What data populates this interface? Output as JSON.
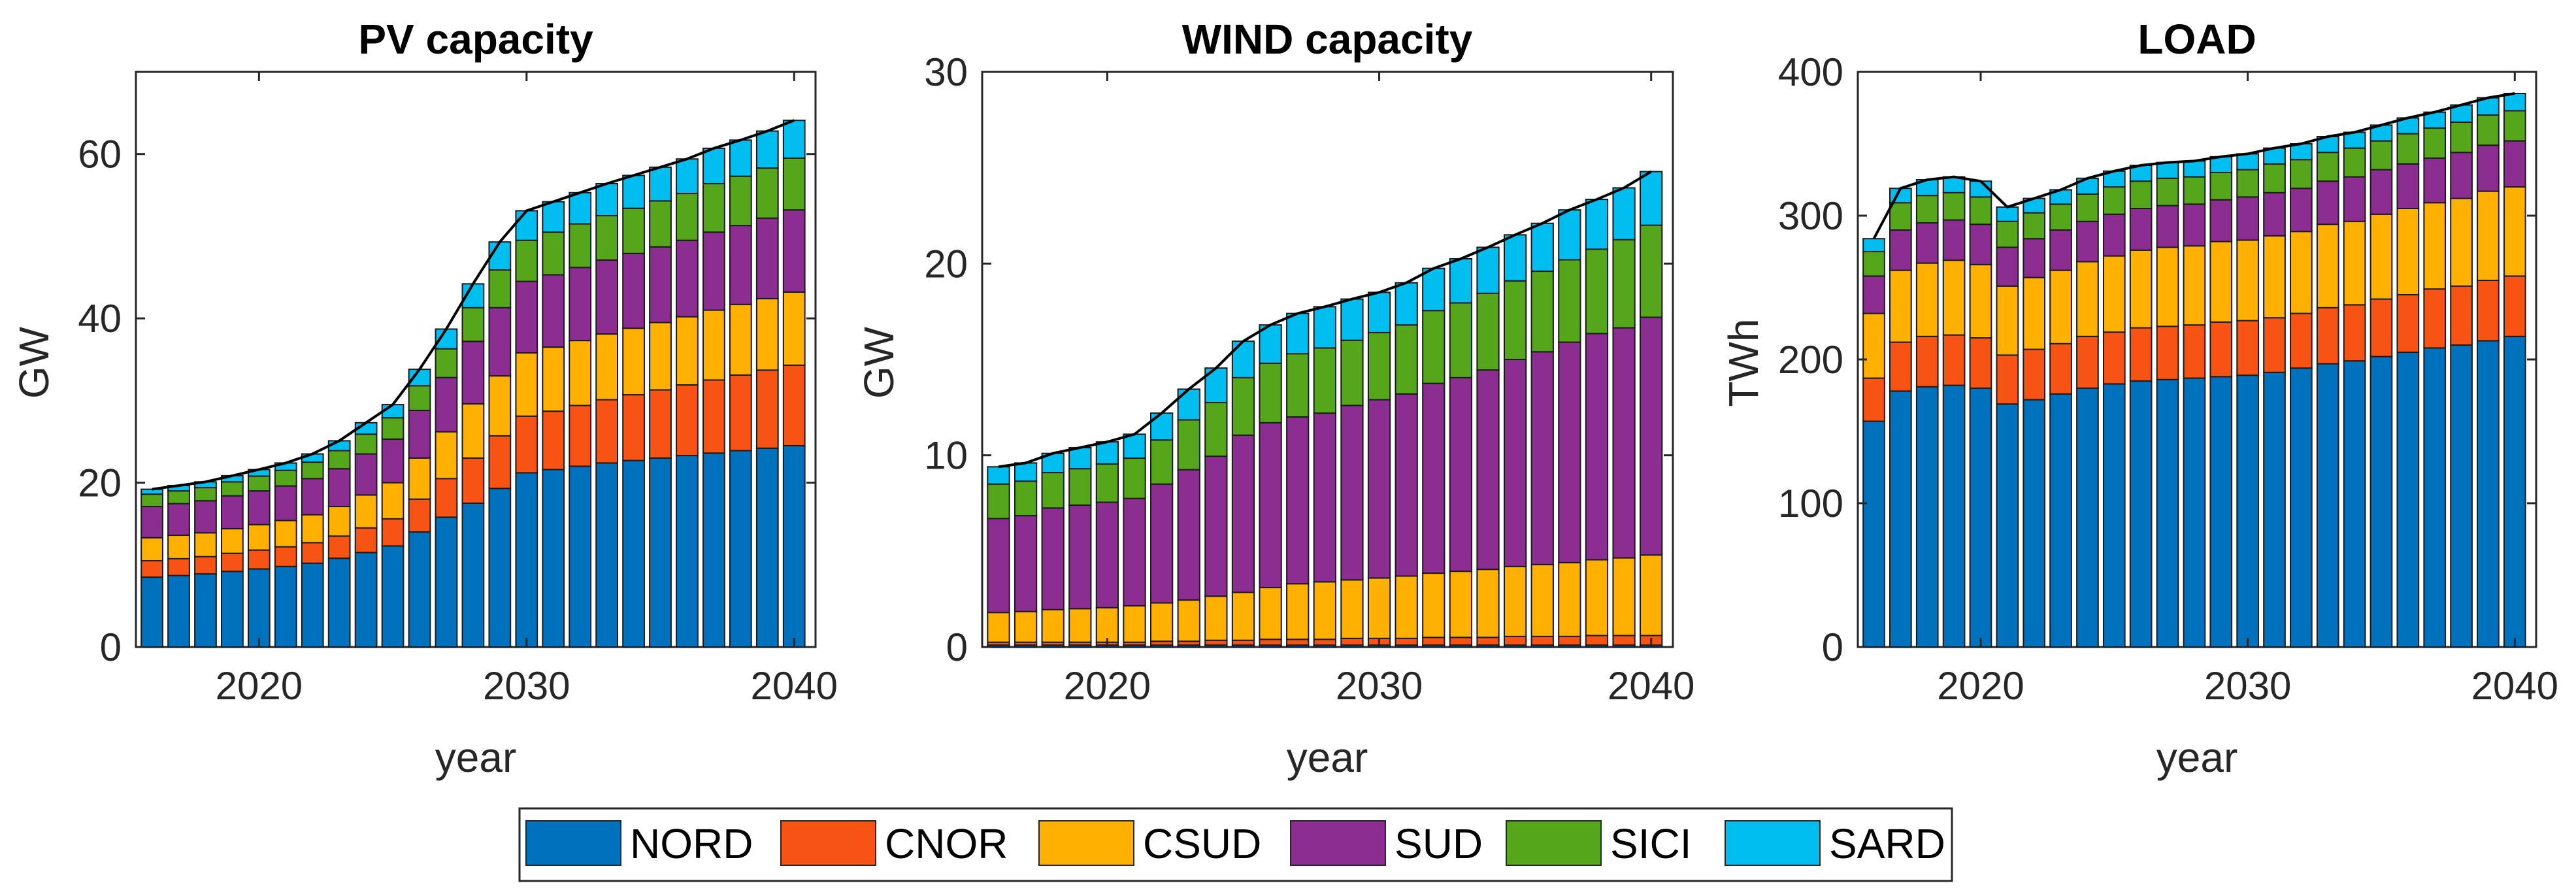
{
  "chart_data": [
    {
      "type": "bar",
      "stacked": true,
      "title": "PV capacity",
      "xlabel": "year",
      "ylabel": "GW",
      "xlim": [
        2015.4,
        2040.8
      ],
      "ylim": [
        0,
        70
      ],
      "xticks": [
        2020,
        2030,
        2040
      ],
      "yticks": [
        0,
        20,
        40,
        60
      ],
      "categories": [
        2016,
        2017,
        2018,
        2019,
        2020,
        2021,
        2022,
        2023,
        2024,
        2025,
        2026,
        2027,
        2028,
        2029,
        2030,
        2031,
        2032,
        2033,
        2034,
        2035,
        2036,
        2037,
        2038,
        2039,
        2040
      ],
      "series": [
        {
          "name": "NORD",
          "values": [
            8.5,
            8.7,
            8.9,
            9.2,
            9.5,
            9.8,
            10.2,
            10.8,
            11.5,
            12.3,
            14.0,
            15.8,
            17.5,
            19.3,
            21.2,
            21.6,
            22.0,
            22.4,
            22.7,
            23.0,
            23.3,
            23.6,
            23.9,
            24.2,
            24.5
          ]
        },
        {
          "name": "CNOR",
          "values": [
            2.0,
            2.05,
            2.1,
            2.2,
            2.3,
            2.4,
            2.5,
            2.7,
            3.0,
            3.3,
            4.0,
            4.7,
            5.5,
            6.4,
            6.9,
            7.1,
            7.4,
            7.7,
            8.0,
            8.3,
            8.6,
            8.9,
            9.2,
            9.5,
            9.8
          ]
        },
        {
          "name": "CSUD",
          "values": [
            2.8,
            2.85,
            2.9,
            3.0,
            3.1,
            3.2,
            3.4,
            3.6,
            4.0,
            4.4,
            5.0,
            5.7,
            6.6,
            7.3,
            7.7,
            7.8,
            7.9,
            8.0,
            8.1,
            8.2,
            8.3,
            8.5,
            8.6,
            8.7,
            8.9
          ]
        },
        {
          "name": "SUD",
          "values": [
            3.8,
            3.85,
            3.9,
            4.0,
            4.1,
            4.2,
            4.4,
            4.6,
            5.0,
            5.3,
            5.8,
            6.6,
            7.6,
            8.3,
            8.7,
            8.8,
            8.9,
            9.0,
            9.1,
            9.2,
            9.3,
            9.5,
            9.6,
            9.8,
            10.0
          ]
        },
        {
          "name": "SICI",
          "values": [
            1.5,
            1.55,
            1.6,
            1.7,
            1.8,
            1.9,
            2.0,
            2.2,
            2.4,
            2.6,
            3.0,
            3.5,
            4.1,
            4.6,
            5.0,
            5.2,
            5.3,
            5.4,
            5.5,
            5.6,
            5.7,
            5.9,
            6.0,
            6.1,
            6.3
          ]
        },
        {
          "name": "SARD",
          "values": [
            0.6,
            0.65,
            0.7,
            0.75,
            0.8,
            0.9,
            1.0,
            1.2,
            1.4,
            1.6,
            2.0,
            2.4,
            2.9,
            3.4,
            3.6,
            3.7,
            3.8,
            3.9,
            4.0,
            4.1,
            4.2,
            4.3,
            4.4,
            4.5,
            4.6
          ]
        }
      ]
    },
    {
      "type": "bar",
      "stacked": true,
      "title": "WIND capacity",
      "xlabel": "year",
      "ylabel": "GW",
      "xlim": [
        2015.4,
        2040.8
      ],
      "ylim": [
        0,
        30
      ],
      "xticks": [
        2020,
        2030,
        2040
      ],
      "yticks": [
        0,
        10,
        20,
        30
      ],
      "categories": [
        2016,
        2017,
        2018,
        2019,
        2020,
        2021,
        2022,
        2023,
        2024,
        2025,
        2026,
        2027,
        2028,
        2029,
        2030,
        2031,
        2032,
        2033,
        2034,
        2035,
        2036,
        2037,
        2038,
        2039,
        2040
      ],
      "series": [
        {
          "name": "NORD",
          "values": [
            0.1,
            0.1,
            0.1,
            0.1,
            0.1,
            0.1,
            0.1,
            0.1,
            0.1,
            0.1,
            0.1,
            0.1,
            0.1,
            0.1,
            0.1,
            0.1,
            0.1,
            0.1,
            0.1,
            0.1,
            0.1,
            0.1,
            0.1,
            0.1,
            0.1
          ]
        },
        {
          "name": "CNOR",
          "values": [
            0.15,
            0.15,
            0.15,
            0.15,
            0.15,
            0.15,
            0.2,
            0.2,
            0.25,
            0.25,
            0.3,
            0.3,
            0.3,
            0.35,
            0.35,
            0.35,
            0.4,
            0.4,
            0.4,
            0.45,
            0.45,
            0.45,
            0.5,
            0.5,
            0.5
          ]
        },
        {
          "name": "CSUD",
          "values": [
            1.55,
            1.6,
            1.7,
            1.75,
            1.8,
            1.9,
            2.0,
            2.15,
            2.3,
            2.5,
            2.7,
            2.9,
            3.0,
            3.05,
            3.15,
            3.25,
            3.35,
            3.45,
            3.55,
            3.65,
            3.75,
            3.85,
            3.95,
            4.05,
            4.2
          ]
        },
        {
          "name": "SUD",
          "values": [
            4.9,
            5.0,
            5.3,
            5.4,
            5.5,
            5.6,
            6.2,
            6.8,
            7.3,
            8.2,
            8.6,
            8.7,
            8.8,
            9.1,
            9.3,
            9.5,
            9.9,
            10.1,
            10.4,
            10.8,
            11.1,
            11.5,
            11.8,
            12.0,
            12.4
          ]
        },
        {
          "name": "SICI",
          "values": [
            1.8,
            1.8,
            1.85,
            1.9,
            2.0,
            2.1,
            2.3,
            2.6,
            2.8,
            3.0,
            3.1,
            3.3,
            3.4,
            3.4,
            3.5,
            3.6,
            3.8,
            3.9,
            4.0,
            4.1,
            4.2,
            4.3,
            4.4,
            4.6,
            4.8
          ]
        },
        {
          "name": "SARD",
          "values": [
            0.9,
            0.95,
            1.0,
            1.1,
            1.15,
            1.25,
            1.4,
            1.6,
            1.8,
            1.9,
            2.0,
            2.1,
            2.15,
            2.15,
            2.1,
            2.2,
            2.2,
            2.3,
            2.4,
            2.4,
            2.5,
            2.6,
            2.6,
            2.7,
            2.8
          ]
        }
      ]
    },
    {
      "type": "bar",
      "stacked": true,
      "title": "LOAD",
      "xlabel": "year",
      "ylabel": "TWh",
      "xlim": [
        2015.4,
        2040.8
      ],
      "ylim": [
        0,
        400
      ],
      "xticks": [
        2020,
        2030,
        2040
      ],
      "yticks": [
        0,
        100,
        200,
        300,
        400
      ],
      "categories": [
        2016,
        2017,
        2018,
        2019,
        2020,
        2021,
        2022,
        2023,
        2024,
        2025,
        2026,
        2027,
        2028,
        2029,
        2030,
        2031,
        2032,
        2033,
        2034,
        2035,
        2036,
        2037,
        2038,
        2039,
        2040
      ],
      "series": [
        {
          "name": "NORD",
          "values": [
            157,
            178,
            181,
            182,
            180,
            169,
            172,
            176,
            180,
            183,
            185,
            186,
            187,
            188,
            189,
            191,
            194,
            197,
            199,
            202,
            205,
            208,
            210,
            213,
            216
          ]
        },
        {
          "name": "CNOR",
          "values": [
            30,
            34,
            35,
            35,
            35,
            34,
            35,
            35,
            36,
            36,
            37,
            37,
            37,
            38,
            38,
            38,
            38,
            39,
            39,
            40,
            40,
            41,
            41,
            42,
            42
          ]
        },
        {
          "name": "CSUD",
          "values": [
            45,
            50,
            51,
            52,
            51,
            48,
            50,
            51,
            52,
            53,
            54,
            55,
            55,
            56,
            56,
            57,
            57,
            58,
            58,
            59,
            60,
            60,
            61,
            62,
            62
          ]
        },
        {
          "name": "SUD",
          "values": [
            26,
            28,
            28,
            28,
            28,
            27,
            27,
            28,
            28,
            29,
            29,
            29,
            29,
            29,
            30,
            30,
            30,
            30,
            31,
            31,
            31,
            31,
            32,
            32,
            32
          ]
        },
        {
          "name": "SICI",
          "values": [
            17,
            19,
            19,
            19,
            19,
            18,
            18,
            18,
            19,
            19,
            19,
            19,
            19,
            19,
            19,
            20,
            20,
            20,
            20,
            20,
            21,
            21,
            21,
            21,
            21
          ]
        },
        {
          "name": "SARD",
          "values": [
            9,
            10,
            11,
            11,
            11,
            10,
            10,
            10,
            11,
            11,
            11,
            11,
            11,
            11,
            11,
            11,
            11,
            11,
            11,
            11,
            11,
            11,
            12,
            12,
            12
          ]
        }
      ]
    }
  ],
  "legend": {
    "entries": [
      "NORD",
      "CNOR",
      "CSUD",
      "SUD",
      "SICI",
      "SARD"
    ],
    "colors": [
      "#0072BD",
      "#F65314",
      "#FFB000",
      "#8C2D91",
      "#56A61C",
      "#00BFF0"
    ]
  }
}
